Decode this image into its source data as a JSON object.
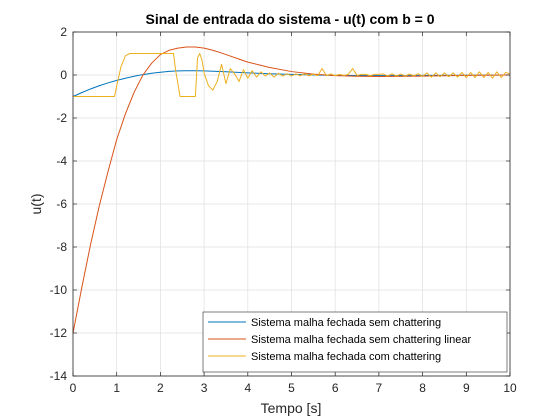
{
  "chart_data": {
    "type": "line",
    "title": "Sinal de entrada do sistema - u(t) com b = 0",
    "xlabel": "Tempo [s]",
    "ylabel": "u(t)",
    "xlim": [
      0,
      10
    ],
    "ylim": [
      -14,
      2
    ],
    "xticks": [
      0,
      1,
      2,
      3,
      4,
      5,
      6,
      7,
      8,
      9,
      10
    ],
    "yticks": [
      2,
      0,
      -2,
      -4,
      -6,
      -8,
      -10,
      -12,
      -14
    ],
    "xtick_labels": [
      "0",
      "1",
      "2",
      "3",
      "4",
      "5",
      "6",
      "7",
      "8",
      "9",
      "10"
    ],
    "ytick_labels": [
      "2",
      "0",
      "-2",
      "-4",
      "-6",
      "-8",
      "-10",
      "-12",
      "-14"
    ],
    "grid": true,
    "legend_position": "bottom-right",
    "series": [
      {
        "name": "Sistema malha fechada sem chattering",
        "color": "#0072BD",
        "x": [
          0,
          0.2,
          0.4,
          0.6,
          0.8,
          1.0,
          1.2,
          1.4,
          1.6,
          1.8,
          2.0,
          2.2,
          2.4,
          2.6,
          2.8,
          3.0,
          3.5,
          4.0,
          4.5,
          5.0,
          5.5,
          6.0,
          7.0,
          8.0,
          9.0,
          10.0
        ],
        "y": [
          -1.0,
          -0.82,
          -0.65,
          -0.5,
          -0.37,
          -0.25,
          -0.15,
          -0.06,
          0.02,
          0.08,
          0.13,
          0.17,
          0.19,
          0.2,
          0.2,
          0.19,
          0.15,
          0.1,
          0.06,
          0.03,
          0.0,
          -0.02,
          -0.03,
          -0.02,
          -0.01,
          0.0
        ]
      },
      {
        "name": "Sistema malha fechada sem chattering linear",
        "color": "#D95319",
        "x": [
          0,
          0.2,
          0.4,
          0.6,
          0.8,
          1.0,
          1.2,
          1.4,
          1.6,
          1.8,
          2.0,
          2.2,
          2.4,
          2.6,
          2.8,
          3.0,
          3.2,
          3.4,
          3.6,
          3.8,
          4.0,
          4.5,
          5.0,
          5.5,
          6.0,
          6.5,
          7.0,
          8.0,
          9.0,
          10.0
        ],
        "y": [
          -12.0,
          -9.9,
          -7.9,
          -6.1,
          -4.5,
          -3.0,
          -1.8,
          -0.8,
          0.0,
          0.55,
          0.95,
          1.15,
          1.25,
          1.3,
          1.3,
          1.25,
          1.15,
          1.02,
          0.88,
          0.74,
          0.6,
          0.35,
          0.16,
          0.04,
          -0.03,
          -0.06,
          -0.07,
          -0.05,
          -0.02,
          0.0
        ]
      },
      {
        "name": "Sistema malha fechada com chattering",
        "color": "#EDB120",
        "x": [
          0,
          0.95,
          1.0,
          1.1,
          1.2,
          1.3,
          1.4,
          2.3,
          2.35,
          2.45,
          2.55,
          2.6,
          2.8,
          2.85,
          2.9,
          2.95,
          3.0,
          3.1,
          3.2,
          3.3,
          3.4,
          3.5,
          3.6,
          3.7,
          3.8,
          3.9,
          4.0,
          4.1,
          4.2,
          4.3,
          4.4,
          4.5,
          4.6,
          4.7,
          4.8,
          4.9,
          5.0,
          5.1,
          5.2,
          5.3,
          5.4,
          5.5,
          5.6,
          5.7,
          5.8,
          5.9,
          6.0,
          6.1,
          6.2,
          6.3,
          6.4,
          6.5,
          6.6,
          6.7,
          6.8,
          6.9,
          7.0,
          7.1,
          7.2,
          7.3,
          7.4,
          7.5,
          7.6,
          7.7,
          7.8,
          7.9,
          8.0,
          8.1,
          8.2,
          8.3,
          8.4,
          8.5,
          8.6,
          8.7,
          8.8,
          8.9,
          9.0,
          9.1,
          9.2,
          9.3,
          9.4,
          9.5,
          9.6,
          9.7,
          9.8,
          9.9,
          10.0
        ],
        "y": [
          -1.0,
          -1.0,
          -0.5,
          0.4,
          0.9,
          1.0,
          1.0,
          1.0,
          0.2,
          -1.0,
          -1.0,
          -1.0,
          -1.0,
          0.8,
          1.0,
          0.7,
          0.1,
          -0.5,
          -0.7,
          -0.3,
          0.5,
          -0.4,
          0.3,
          0.05,
          -0.3,
          0.25,
          -0.15,
          0.2,
          -0.1,
          0.15,
          -0.05,
          0.1,
          -0.1,
          0.08,
          -0.05,
          0.06,
          -0.05,
          0.05,
          -0.04,
          0.05,
          -0.04,
          0.04,
          -0.03,
          0.3,
          -0.03,
          0.05,
          -0.03,
          0.03,
          -0.02,
          0.03,
          0.3,
          -0.02,
          0.03,
          0.03,
          -0.03,
          0.03,
          0.03,
          0.05,
          -0.05,
          0.06,
          -0.05,
          0.05,
          -0.05,
          0.05,
          -0.04,
          0.06,
          -0.06,
          0.1,
          -0.1,
          0.1,
          -0.08,
          0.1,
          -0.08,
          0.1,
          -0.1,
          0.12,
          -0.12,
          0.12,
          -0.12,
          0.15,
          -0.12,
          0.12,
          -0.15,
          0.15,
          -0.12,
          0.12,
          0.05
        ]
      }
    ]
  }
}
